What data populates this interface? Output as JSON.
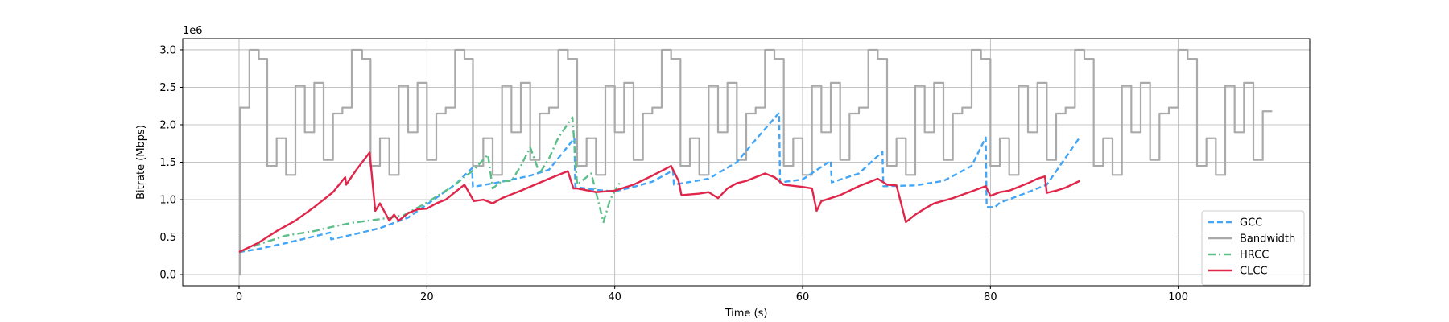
{
  "chart_data": {
    "type": "line",
    "xlabel": "Time (s)",
    "ylabel": "Bitrate (Mbps)",
    "y_offset_label": "1e6",
    "xlim": [
      -6,
      114
    ],
    "ylim": [
      -150000,
      3150000
    ],
    "x_ticks": [
      0,
      20,
      40,
      60,
      80,
      100
    ],
    "y_ticks": [
      0,
      500000,
      1000000,
      1500000,
      2000000,
      2500000,
      3000000
    ],
    "y_tick_labels": [
      "0.0",
      "0.5",
      "1.0",
      "1.5",
      "2.0",
      "2.5",
      "3.0"
    ],
    "grid": true,
    "legend_position": "lower-right",
    "series": [
      {
        "name": "GCC",
        "color": "#42a5f5",
        "style": "dashed",
        "x": [
          0,
          2,
          5,
          9.7,
          9.8,
          12,
          15,
          18,
          20.5,
          23,
          24.8,
          24.9,
          28,
          31,
          33,
          35.7,
          35.8,
          38,
          40,
          42,
          44,
          46.2,
          46.3,
          50,
          53,
          55,
          57.5,
          57.6,
          60,
          63,
          63.1,
          66,
          68.5,
          68.6,
          72,
          75,
          78,
          79.5,
          79.6,
          80.5,
          81,
          83,
          86,
          89.5
        ],
        "y": [
          300000,
          340000,
          420000,
          560000,
          470000,
          530000,
          620000,
          760000,
          980000,
          1200000,
          1420000,
          1170000,
          1240000,
          1320000,
          1400000,
          1820000,
          1170000,
          1130000,
          1110000,
          1170000,
          1240000,
          1390000,
          1200000,
          1280000,
          1500000,
          1800000,
          2160000,
          1230000,
          1270000,
          1520000,
          1230000,
          1350000,
          1640000,
          1180000,
          1190000,
          1250000,
          1450000,
          1830000,
          900000,
          900000,
          960000,
          1050000,
          1200000,
          1830000
        ]
      },
      {
        "name": "Bandwidth",
        "color": "#aaaaaa",
        "style": "solid-step",
        "x": [
          0,
          0.1,
          1.1,
          2.1,
          3.0,
          4.0,
          5.0,
          6.0,
          7.0,
          8.0,
          9.0,
          10.0,
          11.0,
          12.0,
          13.1,
          14.0,
          15.0,
          16.0,
          17.0,
          18.0,
          19.0,
          20.0,
          21.0,
          22.0,
          23.0,
          24.0,
          24.9,
          26.0,
          27.0,
          28.0,
          29.0,
          30.0,
          31.0,
          32.0,
          33.0,
          34.0,
          35.0,
          36.0,
          37.0,
          38.0,
          39.0,
          40.0,
          41.0,
          42.0,
          43.0,
          44.0,
          45.0,
          46.0,
          47.0,
          48.0,
          49.0,
          50.0,
          51.0,
          52.0,
          53.0,
          54.0,
          55.0,
          56.0,
          57.0,
          58.0,
          59.0,
          60.0,
          61.0,
          62.0,
          63.0,
          64.0,
          65.0,
          66.0,
          67.0,
          68.0,
          69.0,
          70.0,
          71.0,
          72.0,
          73.0,
          74.0,
          75.0,
          76.0,
          77.0,
          78.0,
          79.0,
          80.0,
          81.0,
          82.0,
          83.0,
          84.0,
          85.0,
          86.0,
          87.0,
          88.0,
          89.0,
          90.0,
          91.0,
          92.0,
          93.0,
          94.0,
          95.0,
          96.0,
          97.0,
          98.0,
          99.0,
          100.0,
          101.0,
          102.0,
          103.0,
          104.0,
          105.0,
          106.0,
          107.0,
          108.0,
          109.0
        ],
        "y": [
          0,
          2230000,
          3000000,
          2880000,
          1450000,
          1820000,
          1330000,
          2520000,
          1900000,
          2560000,
          1530000,
          2150000,
          2230000,
          3000000,
          2880000,
          1450000,
          1820000,
          1330000,
          2520000,
          1900000,
          2560000,
          1530000,
          2150000,
          2230000,
          3000000,
          2880000,
          1450000,
          1820000,
          1330000,
          2520000,
          1900000,
          2560000,
          1530000,
          2150000,
          2230000,
          3000000,
          2880000,
          1450000,
          1820000,
          1330000,
          2520000,
          1900000,
          2560000,
          1530000,
          2150000,
          2230000,
          3000000,
          2880000,
          1450000,
          1820000,
          1330000,
          2520000,
          1900000,
          2560000,
          1530000,
          2150000,
          2230000,
          3000000,
          2880000,
          1450000,
          1820000,
          1330000,
          2520000,
          1900000,
          2560000,
          1530000,
          2150000,
          2230000,
          3000000,
          2880000,
          1450000,
          1820000,
          1330000,
          2520000,
          1900000,
          2560000,
          1530000,
          2150000,
          2230000,
          3000000,
          2880000,
          1450000,
          1820000,
          1330000,
          2520000,
          1900000,
          2560000,
          1530000,
          2150000,
          2230000,
          3000000,
          2880000,
          1450000,
          1820000,
          1330000,
          2520000,
          1900000,
          2560000,
          1530000,
          2150000,
          2230000,
          3000000,
          2880000,
          1450000,
          1820000,
          1330000,
          2520000,
          1900000,
          2560000,
          1530000,
          2180000
        ]
      },
      {
        "name": "HRCC",
        "color": "#5cbf8a",
        "style": "dashdot",
        "x": [
          0,
          2,
          5,
          8,
          10,
          12,
          15,
          17.5,
          20,
          23,
          25,
          26.5,
          27,
          28,
          29,
          30,
          31,
          32,
          33,
          34,
          35.5,
          36,
          37.5,
          38.8,
          39.5,
          40.5
        ],
        "y": [
          300000,
          400000,
          520000,
          580000,
          640000,
          690000,
          740000,
          790000,
          960000,
          1200000,
          1400000,
          1600000,
          1150000,
          1250000,
          1250000,
          1450000,
          1700000,
          1350000,
          1550000,
          1830000,
          2100000,
          1200000,
          1350000,
          700000,
          1000000,
          1220000
        ]
      },
      {
        "name": "CLCC",
        "color": "#e0264a",
        "style": "solid",
        "x": [
          0,
          2,
          4,
          6,
          8,
          10,
          11.3,
          11.4,
          12.5,
          13.9,
          14.5,
          15,
          16,
          16.5,
          17,
          18,
          19,
          20,
          21,
          22,
          23,
          24,
          25,
          26,
          27,
          28,
          30,
          33,
          35,
          35.6,
          36,
          38,
          40,
          42,
          44,
          46,
          46.8,
          47.1,
          49,
          50,
          51,
          52,
          53,
          54,
          55,
          56,
          57,
          58,
          60,
          61,
          61.5,
          62,
          64,
          66,
          68,
          69,
          70,
          71,
          72,
          73,
          74,
          76,
          78,
          79.5,
          80,
          81,
          82,
          84,
          85,
          85.8,
          86,
          87,
          88,
          89.5
        ],
        "y": [
          300000,
          420000,
          580000,
          720000,
          900000,
          1100000,
          1300000,
          1200000,
          1400000,
          1630000,
          850000,
          950000,
          720000,
          800000,
          720000,
          820000,
          870000,
          880000,
          950000,
          1000000,
          1100000,
          1200000,
          980000,
          1000000,
          950000,
          1020000,
          1120000,
          1280000,
          1380000,
          1150000,
          1150000,
          1100000,
          1120000,
          1200000,
          1320000,
          1450000,
          1250000,
          1060000,
          1080000,
          1100000,
          1020000,
          1150000,
          1220000,
          1250000,
          1300000,
          1350000,
          1300000,
          1200000,
          1170000,
          1150000,
          850000,
          980000,
          1060000,
          1180000,
          1280000,
          1200000,
          1190000,
          700000,
          800000,
          880000,
          950000,
          1020000,
          1110000,
          1180000,
          1050000,
          1100000,
          1120000,
          1220000,
          1280000,
          1310000,
          1090000,
          1120000,
          1160000,
          1250000
        ]
      }
    ]
  }
}
